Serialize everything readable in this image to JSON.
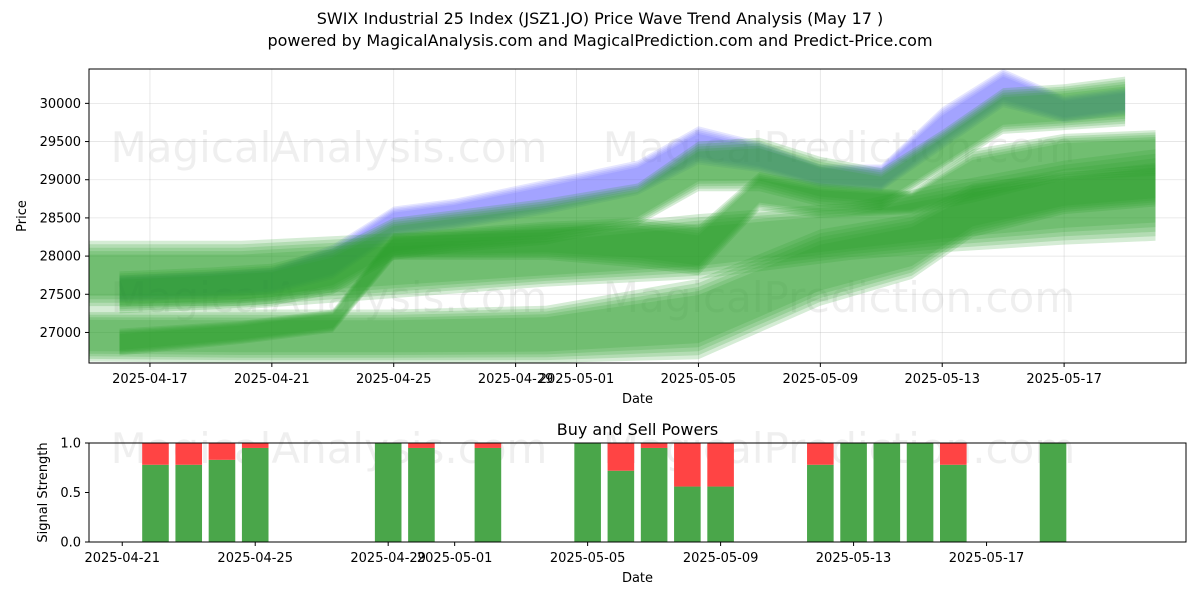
{
  "title": {
    "line1": "SWIX Industrial 25 Index (JSZ1.JO) Price Wave Trend Analysis (May 17 )",
    "line2": "powered by MagicalAnalysis.com and MagicalPrediction.com and Predict-Price.com"
  },
  "watermarks": [
    "MagicalAnalysis.com",
    "MagicalPrediction.com"
  ],
  "colors": {
    "green": "#2ca02c",
    "blue": "#6666ff",
    "buy": "#4aa64a",
    "sell": "#ff4444"
  },
  "chart_data": [
    {
      "type": "area",
      "name": "price-wave",
      "xlabel": "Date",
      "ylabel": "Price",
      "ylim": [
        26600,
        30450
      ],
      "xlim": [
        "2025-04-15",
        "2025-05-21"
      ],
      "x_ticks": [
        "2025-04-17",
        "2025-04-21",
        "2025-04-25",
        "2025-04-29",
        "2025-05-01",
        "2025-05-05",
        "2025-05-09",
        "2025-05-13",
        "2025-05-17"
      ],
      "y_ticks": [
        27000,
        27500,
        28000,
        28500,
        29000,
        29500,
        30000
      ],
      "grid": true,
      "series": [
        {
          "color": "blue",
          "dates": [
            "2025-04-16",
            "2025-04-19",
            "2025-04-21",
            "2025-04-23",
            "2025-04-25",
            "2025-04-27",
            "2025-04-30",
            "2025-05-03",
            "2025-05-05",
            "2025-05-07",
            "2025-05-09",
            "2025-05-11",
            "2025-05-13",
            "2025-05-15",
            "2025-05-17",
            "2025-05-19"
          ],
          "upper": [
            27750,
            27800,
            27850,
            28150,
            28650,
            28750,
            29000,
            29250,
            29700,
            29500,
            29200,
            29200,
            29950,
            30450,
            30100,
            30200
          ],
          "lower": [
            27400,
            27450,
            27500,
            27700,
            28250,
            28350,
            28550,
            28800,
            29200,
            29100,
            28900,
            28850,
            29400,
            29950,
            29750,
            29850
          ]
        },
        {
          "color": "green",
          "dates": [
            "2025-04-16",
            "2025-04-19",
            "2025-04-21",
            "2025-04-23",
            "2025-04-25",
            "2025-04-27",
            "2025-04-30",
            "2025-05-03",
            "2025-05-05",
            "2025-05-07",
            "2025-05-09",
            "2025-05-11",
            "2025-05-13",
            "2025-05-15",
            "2025-05-17",
            "2025-05-19"
          ],
          "upper": [
            27800,
            27850,
            27900,
            28100,
            28500,
            28600,
            28750,
            28950,
            29500,
            29550,
            29300,
            29150,
            29650,
            30200,
            30250,
            30350
          ],
          "lower": [
            27250,
            27300,
            27350,
            27500,
            27950,
            28050,
            28150,
            28400,
            28850,
            28850,
            28650,
            28600,
            29100,
            29600,
            29650,
            29700
          ]
        },
        {
          "color": "green",
          "dates": [
            "2025-04-15",
            "2025-04-20",
            "2025-04-25",
            "2025-04-30",
            "2025-05-05",
            "2025-05-10",
            "2025-05-13",
            "2025-05-17",
            "2025-05-20"
          ],
          "upper": [
            28200,
            28200,
            28300,
            28350,
            28550,
            28700,
            28950,
            29250,
            29400
          ],
          "lower": [
            27300,
            27300,
            27450,
            27600,
            27700,
            27950,
            28050,
            28150,
            28200
          ]
        },
        {
          "color": "green",
          "dates": [
            "2025-04-15",
            "2025-04-20",
            "2025-04-25",
            "2025-04-30",
            "2025-05-05",
            "2025-05-09",
            "2025-05-12",
            "2025-05-14",
            "2025-05-17",
            "2025-05-20"
          ],
          "upper": [
            27300,
            27300,
            27300,
            27350,
            27700,
            28350,
            28550,
            28950,
            29100,
            29200
          ],
          "lower": [
            26620,
            26600,
            26600,
            26600,
            26650,
            27350,
            27700,
            28250,
            28550,
            28650
          ]
        },
        {
          "color": "green",
          "dates": [
            "2025-04-16",
            "2025-04-20",
            "2025-04-23",
            "2025-04-25",
            "2025-04-30",
            "2025-05-03",
            "2025-05-05",
            "2025-05-07",
            "2025-05-09",
            "2025-05-12",
            "2025-05-14",
            "2025-05-17",
            "2025-05-20"
          ],
          "upper": [
            27050,
            27150,
            27300,
            28300,
            28450,
            28500,
            28400,
            29100,
            28950,
            28850,
            29400,
            29600,
            29650
          ],
          "lower": [
            26700,
            26850,
            27000,
            27950,
            27950,
            27850,
            27750,
            28600,
            28500,
            28550,
            28700,
            29000,
            29050
          ]
        }
      ]
    },
    {
      "type": "bar",
      "name": "buy-sell-powers",
      "title": "Buy and Sell Powers",
      "xlabel": "Date",
      "ylabel": "Signal Strength",
      "ylim": [
        0,
        1.0
      ],
      "y_ticks": [
        "0.0",
        "0.5",
        "1.0"
      ],
      "x_ticks": [
        "2025-04-21",
        "2025-04-25",
        "2025-04-29",
        "2025-05-01",
        "2025-05-05",
        "2025-05-09",
        "2025-05-13",
        "2025-05-17"
      ],
      "dates": [
        "2025-04-22",
        "2025-04-23",
        "2025-04-24",
        "2025-04-25",
        "2025-04-29",
        "2025-04-30",
        "2025-05-02",
        "2025-05-05",
        "2025-05-06",
        "2025-05-07",
        "2025-05-08",
        "2025-05-09",
        "2025-05-12",
        "2025-05-13",
        "2025-05-14",
        "2025-05-15",
        "2025-05-16",
        "2025-05-19"
      ],
      "series": [
        {
          "name": "Buy",
          "values": [
            0.78,
            0.78,
            0.83,
            0.95,
            1.0,
            0.95,
            0.95,
            1.0,
            0.72,
            0.95,
            0.56,
            0.56,
            0.78,
            1.0,
            1.0,
            1.0,
            0.78,
            1.0
          ]
        },
        {
          "name": "Sell",
          "values": [
            0.22,
            0.22,
            0.17,
            0.05,
            0.0,
            0.05,
            0.05,
            0.0,
            0.28,
            0.05,
            0.44,
            0.44,
            0.22,
            0.0,
            0.0,
            0.0,
            0.22,
            0.0
          ]
        }
      ]
    }
  ]
}
